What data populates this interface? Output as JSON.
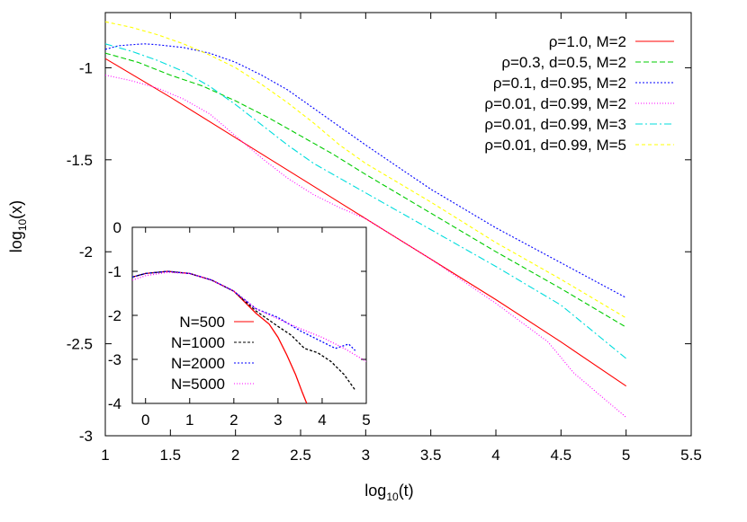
{
  "chart_data": [
    {
      "type": "line",
      "xlabel": "log",
      "xlabel_sub": "10",
      "xlabel_tail": "(t)",
      "ylabel": "log",
      "ylabel_sub": "10",
      "ylabel_tail": "(x)",
      "xlim": [
        1,
        5.5
      ],
      "ylim": [
        -3,
        -0.7
      ],
      "xticks": [
        1,
        1.5,
        2,
        2.5,
        3,
        3.5,
        4,
        4.5,
        5,
        5.5
      ],
      "xtick_labels": [
        "1",
        "1.5",
        "2",
        "2.5",
        "3",
        "3.5",
        "4",
        "4.5",
        "5",
        "5.5"
      ],
      "yticks": [
        -3,
        -2.5,
        -2,
        -1.5,
        -1
      ],
      "ytick_labels": [
        "-3",
        "-2.5",
        "-2",
        "-1.5",
        "-1"
      ],
      "grid": false,
      "legend_position": "top-right",
      "series": [
        {
          "name": "ρ=1.0, M=2",
          "color": "#ff0000",
          "dash": "solid",
          "x": [
            1,
            1.5,
            2,
            2.5,
            3,
            3.5,
            4,
            4.5,
            5
          ],
          "y": [
            -0.95,
            -1.16,
            -1.38,
            -1.6,
            -1.82,
            -2.04,
            -2.26,
            -2.49,
            -2.73
          ]
        },
        {
          "name": "ρ=0.3, d=0.5, M=2",
          "color": "#00cc00",
          "dash": "6,3",
          "x": [
            1,
            1.25,
            1.5,
            1.75,
            2,
            2.25,
            2.5,
            2.75,
            3,
            3.5,
            4,
            4.5,
            5
          ],
          "y": [
            -0.92,
            -0.97,
            -1.04,
            -1.1,
            -1.18,
            -1.27,
            -1.37,
            -1.47,
            -1.58,
            -1.79,
            -2.0,
            -2.2,
            -2.41
          ]
        },
        {
          "name": "ρ=0.1, d=0.95, M=2",
          "color": "#0000ff",
          "dash": "2,2",
          "x": [
            1,
            1.1,
            1.2,
            1.3,
            1.4,
            1.6,
            1.8,
            2,
            2.2,
            2.4,
            2.6,
            2.8,
            3,
            3.25,
            3.5,
            4,
            4.5,
            5
          ],
          "y": [
            -0.9,
            -0.88,
            -0.875,
            -0.87,
            -0.875,
            -0.89,
            -0.92,
            -0.97,
            -1.04,
            -1.12,
            -1.22,
            -1.32,
            -1.42,
            -1.54,
            -1.66,
            -1.87,
            -2.06,
            -2.25
          ]
        },
        {
          "name": "ρ=0.01, d=0.99, M=2",
          "color": "#ff00ff",
          "dash": "1,2",
          "x": [
            1,
            1.2,
            1.4,
            1.6,
            1.8,
            2,
            2.2,
            2.4,
            2.6,
            2.8,
            3,
            3.5,
            4,
            4.4,
            4.6,
            4.8,
            5
          ],
          "y": [
            -1.04,
            -1.07,
            -1.11,
            -1.17,
            -1.25,
            -1.37,
            -1.49,
            -1.6,
            -1.69,
            -1.76,
            -1.82,
            -2.04,
            -2.28,
            -2.49,
            -2.66,
            -2.78,
            -2.9
          ]
        },
        {
          "name": "ρ=0.01, d=0.99, M=3",
          "color": "#00dddd",
          "dash": "8,3,2,3",
          "x": [
            1,
            1.2,
            1.4,
            1.6,
            1.8,
            2,
            2.2,
            2.4,
            2.6,
            2.8,
            3,
            3.5,
            4,
            4.5,
            5
          ],
          "y": [
            -0.87,
            -0.91,
            -0.96,
            -1.02,
            -1.1,
            -1.2,
            -1.31,
            -1.42,
            -1.52,
            -1.6,
            -1.68,
            -1.88,
            -2.08,
            -2.29,
            -2.58
          ]
        },
        {
          "name": "ρ=0.01, d=0.99, M=5",
          "color": "#ffff00",
          "dash": "4,3",
          "x": [
            1,
            1.2,
            1.4,
            1.6,
            1.8,
            2,
            2.2,
            2.4,
            2.6,
            2.8,
            3,
            3.5,
            4,
            4.5,
            5
          ],
          "y": [
            -0.75,
            -0.78,
            -0.82,
            -0.87,
            -0.93,
            -1.0,
            -1.09,
            -1.19,
            -1.3,
            -1.42,
            -1.52,
            -1.73,
            -1.95,
            -2.15,
            -2.36
          ]
        }
      ]
    },
    {
      "type": "line",
      "inset": true,
      "xlim": [
        -0.3,
        5
      ],
      "ylim": [
        -4,
        0
      ],
      "xticks": [
        0,
        1,
        2,
        3,
        4,
        5
      ],
      "xtick_labels": [
        "0",
        "1",
        "2",
        "3",
        "4",
        "5"
      ],
      "yticks": [
        0,
        -1,
        -2,
        -3,
        -4
      ],
      "ytick_labels": [
        "0",
        "-1",
        "-2",
        "-3",
        "-4"
      ],
      "legend_position": "bottom-left",
      "series": [
        {
          "name": "N=500",
          "color": "#ff0000",
          "dash": "solid",
          "x": [
            -0.3,
            0,
            0.5,
            1,
            1.5,
            2,
            2.5,
            2.8,
            3,
            3.2,
            3.4,
            3.55,
            3.65
          ],
          "y": [
            -1.13,
            -1.05,
            -1.0,
            -1.05,
            -1.2,
            -1.45,
            -1.95,
            -2.2,
            -2.5,
            -2.9,
            -3.35,
            -3.75,
            -4.0
          ]
        },
        {
          "name": "N=1000",
          "color": "#000000",
          "dash": "3,2",
          "x": [
            -0.3,
            0,
            0.5,
            1,
            1.5,
            2,
            2.5,
            3,
            3.3,
            3.6,
            3.9,
            4.2,
            4.5,
            4.75
          ],
          "y": [
            -1.13,
            -1.05,
            -1.0,
            -1.05,
            -1.2,
            -1.45,
            -1.9,
            -2.25,
            -2.45,
            -2.75,
            -2.85,
            -3.05,
            -3.35,
            -3.7
          ]
        },
        {
          "name": "N=2000",
          "color": "#0000ff",
          "dash": "2,2",
          "x": [
            -0.3,
            0,
            0.5,
            1,
            1.5,
            2,
            2.5,
            3,
            3.5,
            4,
            4.3,
            4.6,
            4.75
          ],
          "y": [
            -1.13,
            -1.05,
            -1.0,
            -1.05,
            -1.2,
            -1.45,
            -1.85,
            -2.05,
            -2.35,
            -2.6,
            -2.75,
            -2.65,
            -2.8
          ]
        },
        {
          "name": "N=5000",
          "color": "#ff00ff",
          "dash": "1,2",
          "x": [
            -0.3,
            0,
            0.5,
            1,
            1.5,
            2,
            2.5,
            3,
            3.5,
            4,
            4.5,
            5
          ],
          "y": [
            -1.2,
            -1.1,
            -1.02,
            -1.05,
            -1.2,
            -1.45,
            -1.85,
            -2.08,
            -2.3,
            -2.5,
            -2.75,
            -3.05
          ]
        }
      ]
    }
  ]
}
